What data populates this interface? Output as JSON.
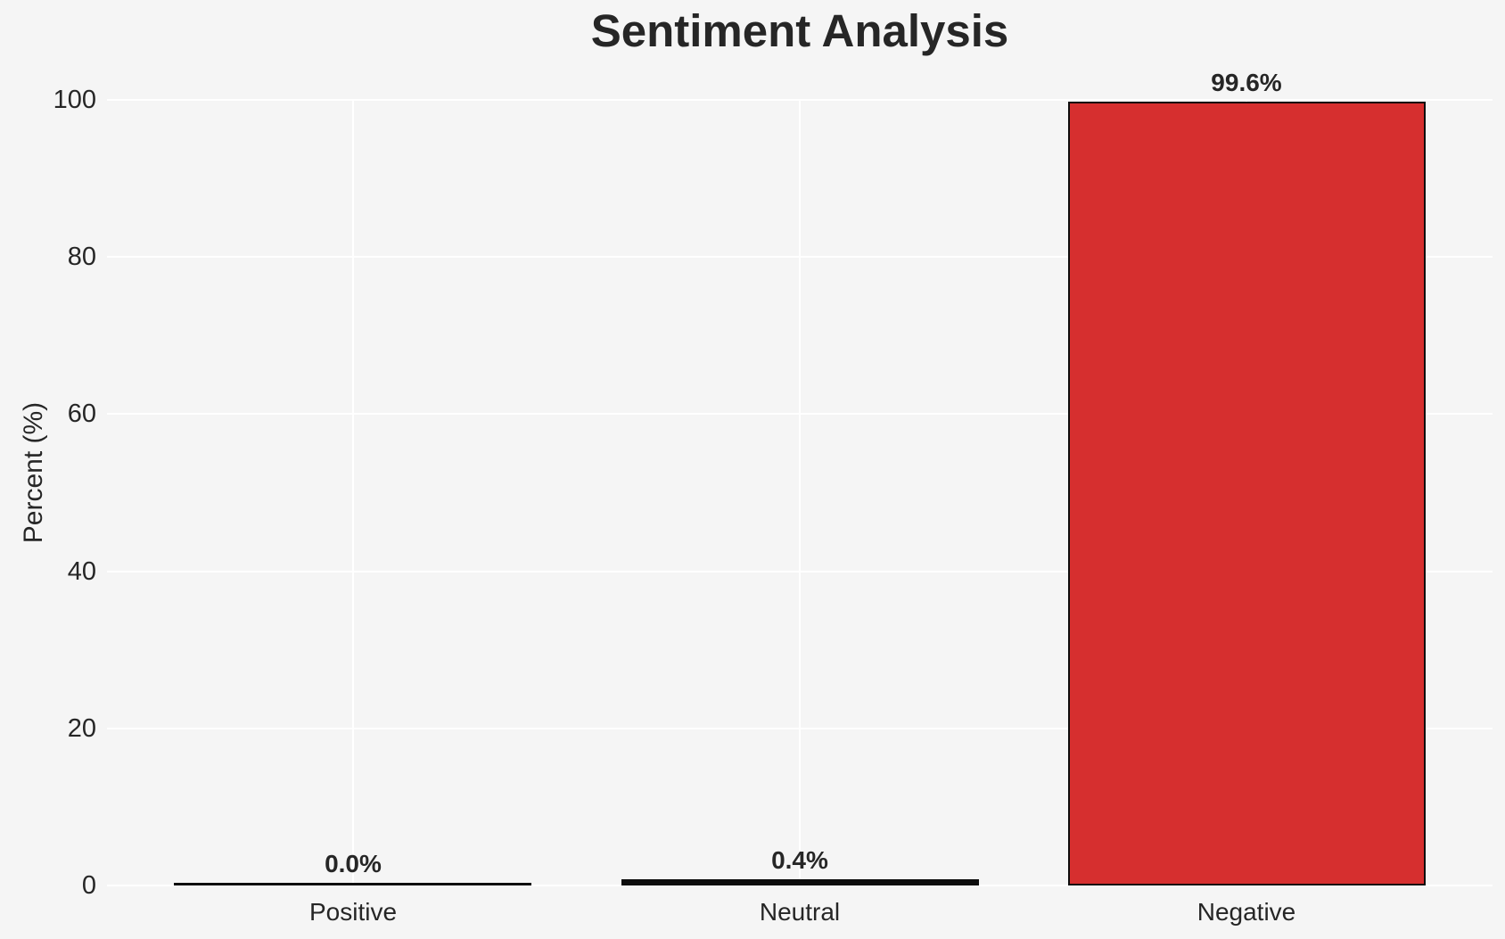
{
  "page": {
    "background": "#f5f5f5"
  },
  "chart_data": {
    "type": "bar",
    "title": "Sentiment Analysis",
    "categories": [
      "Positive",
      "Neutral",
      "Negative"
    ],
    "values": [
      0.0,
      0.4,
      99.6
    ],
    "value_labels": [
      "0.0%",
      "0.4%",
      "99.6%"
    ],
    "xlabel": "",
    "ylabel": "Percent (%)",
    "ylim": [
      0,
      100
    ],
    "yticks": [
      "0",
      "20",
      "40",
      "60",
      "80",
      "100"
    ],
    "xlim": [
      -0.55,
      2.55
    ],
    "bar_width_frac": 0.8,
    "grid": {
      "horizontal": true,
      "vertical": true,
      "color": "#ffffff"
    },
    "legend": "none",
    "colors": {
      "bar_fill": "#d62f2f",
      "bar_edge": "#0d0d0d",
      "text": "#262626",
      "background": "#f5f5f5"
    }
  }
}
